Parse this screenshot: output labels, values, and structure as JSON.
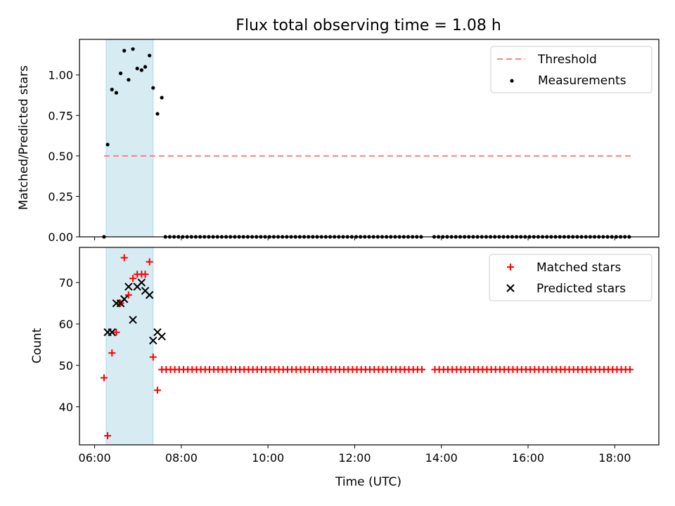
{
  "colors": {
    "threshold": "#ff7f7f",
    "measurement": "#000000",
    "matched": "#ff0000",
    "predicted": "#000000",
    "shade": "#add8e6"
  },
  "chart_data": [
    {
      "type": "scatter",
      "title": "Flux total observing time = 1.08 h",
      "xlabel": "",
      "ylabel": "Matched/Predicted stars",
      "xlim": [
        "05:39",
        "19:01"
      ],
      "ylim": [
        0,
        1.22
      ],
      "yticks": [
        0.0,
        0.25,
        0.5,
        0.75,
        1.0
      ],
      "ytick_labels": [
        "0.00",
        "0.25",
        "0.50",
        "0.75",
        "1.00"
      ],
      "shaded_interval": [
        "06:16",
        "07:21"
      ],
      "legend": {
        "placement": "top-right",
        "entries": [
          "Threshold",
          "Measurements"
        ]
      },
      "threshold": {
        "name": "Threshold",
        "y": 0.5,
        "x": [
          "06:13",
          "18:25"
        ],
        "style": "dashed"
      },
      "series": [
        {
          "name": "Measurements",
          "marker": "dot",
          "points": [
            {
              "x": "06:13",
              "y": 0.0
            },
            {
              "x": "06:18",
              "y": 0.57
            },
            {
              "x": "06:24",
              "y": 0.91
            },
            {
              "x": "06:30",
              "y": 0.89
            },
            {
              "x": "06:36",
              "y": 1.01
            },
            {
              "x": "06:41",
              "y": 1.15
            },
            {
              "x": "06:47",
              "y": 0.97
            },
            {
              "x": "06:53",
              "y": 1.16
            },
            {
              "x": "06:59",
              "y": 1.04
            },
            {
              "x": "07:05",
              "y": 1.03
            },
            {
              "x": "07:10",
              "y": 1.05
            },
            {
              "x": "07:16",
              "y": 1.12
            },
            {
              "x": "07:21",
              "y": 0.92
            },
            {
              "x": "07:27",
              "y": 0.76
            },
            {
              "x": "07:33",
              "y": 0.86
            }
          ],
          "zero_run": {
            "from": "07:38",
            "to": "18:25",
            "step_minutes": 6,
            "y": 0,
            "gaps": [
              [
                "13:35",
                "13:50"
              ]
            ]
          }
        }
      ]
    },
    {
      "type": "scatter",
      "title": "",
      "xlabel": "Time (UTC)",
      "ylabel": "Count",
      "xlim": [
        "05:39",
        "19:01"
      ],
      "ylim": [
        30.8,
        78.5
      ],
      "xticks": [
        "06:00",
        "08:00",
        "10:00",
        "12:00",
        "14:00",
        "16:00",
        "18:00"
      ],
      "yticks": [
        40,
        50,
        60,
        70
      ],
      "shaded_interval": [
        "06:16",
        "07:21"
      ],
      "legend": {
        "placement": "top-right",
        "entries": [
          "Matched stars",
          "Predicted stars"
        ]
      },
      "series": [
        {
          "name": "Matched stars",
          "marker": "plus",
          "points": [
            {
              "x": "06:13",
              "y": 47
            },
            {
              "x": "06:18",
              "y": 33
            },
            {
              "x": "06:24",
              "y": 53
            },
            {
              "x": "06:30",
              "y": 58
            },
            {
              "x": "06:36",
              "y": 65
            },
            {
              "x": "06:41",
              "y": 76
            },
            {
              "x": "06:47",
              "y": 67
            },
            {
              "x": "06:53",
              "y": 71
            },
            {
              "x": "06:59",
              "y": 72
            },
            {
              "x": "07:05",
              "y": 72
            },
            {
              "x": "07:10",
              "y": 72
            },
            {
              "x": "07:16",
              "y": 75
            },
            {
              "x": "07:21",
              "y": 52
            },
            {
              "x": "07:27",
              "y": 44
            }
          ],
          "flat_run": {
            "from": "07:33",
            "to": "18:25",
            "step_minutes": 6,
            "y": 49,
            "gaps": [
              [
                "13:35",
                "13:50"
              ]
            ]
          }
        },
        {
          "name": "Predicted stars",
          "marker": "x",
          "points": [
            {
              "x": "06:18",
              "y": 58
            },
            {
              "x": "06:24",
              "y": 58
            },
            {
              "x": "06:30",
              "y": 65
            },
            {
              "x": "06:36",
              "y": 65
            },
            {
              "x": "06:41",
              "y": 66
            },
            {
              "x": "06:47",
              "y": 69
            },
            {
              "x": "06:53",
              "y": 61
            },
            {
              "x": "06:59",
              "y": 69
            },
            {
              "x": "07:05",
              "y": 70
            },
            {
              "x": "07:10",
              "y": 68
            },
            {
              "x": "07:16",
              "y": 67
            },
            {
              "x": "07:21",
              "y": 56
            },
            {
              "x": "07:27",
              "y": 58
            },
            {
              "x": "07:33",
              "y": 57
            }
          ]
        }
      ]
    }
  ]
}
